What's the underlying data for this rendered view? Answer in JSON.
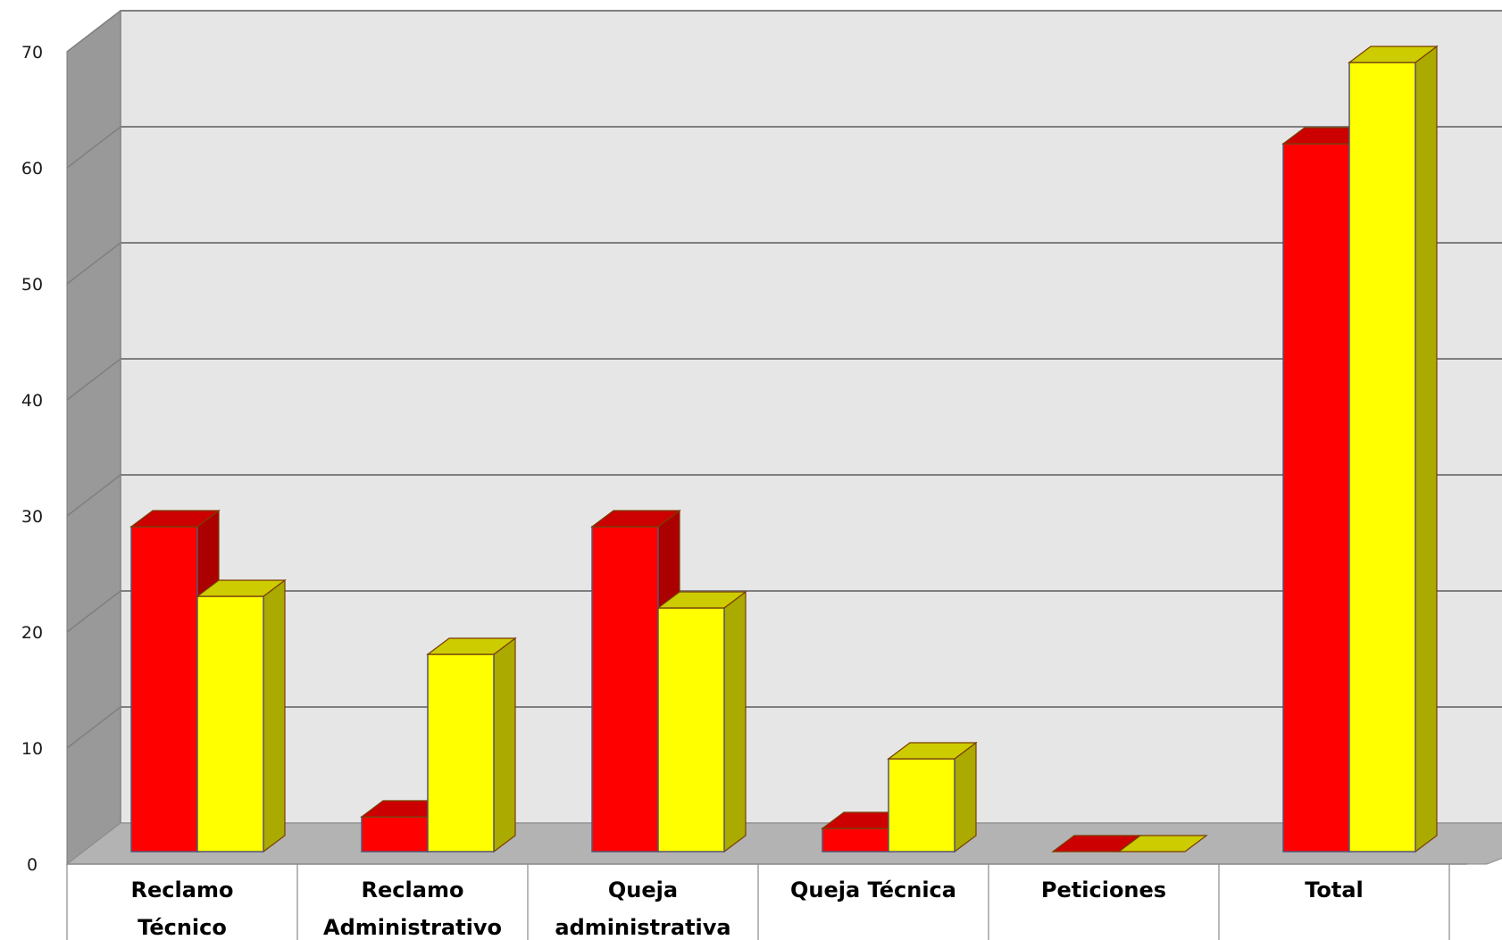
{
  "colors": {
    "series1_front": "#ff0000",
    "series1_side": "#aa0000",
    "series1_top": "#cc0000",
    "series2_front": "#ffff00",
    "series2_side": "#aaaa00",
    "series2_top": "#cccc00",
    "wall": "#e6e6e6",
    "side_wall": "#999999",
    "floor": "#b3b3b3"
  },
  "chart_data": {
    "type": "bar",
    "title": "",
    "xlabel": "",
    "ylabel": "",
    "ylim": [
      0,
      70
    ],
    "y_ticks": [
      "0",
      "10",
      "20",
      "30",
      "40",
      "50",
      "60",
      "70"
    ],
    "grid": true,
    "categories": [
      [
        "Reclamo",
        "Técnico"
      ],
      [
        "Reclamo",
        "Administrativo"
      ],
      [
        "Queja",
        "administrativa"
      ],
      [
        "Queja Técnica"
      ],
      [
        "Peticiones"
      ],
      [
        "Total"
      ]
    ],
    "series": [
      {
        "values": [
          28,
          3,
          28,
          2,
          0,
          61
        ]
      },
      {
        "values": [
          22,
          17,
          21,
          8,
          0,
          68
        ]
      }
    ]
  }
}
